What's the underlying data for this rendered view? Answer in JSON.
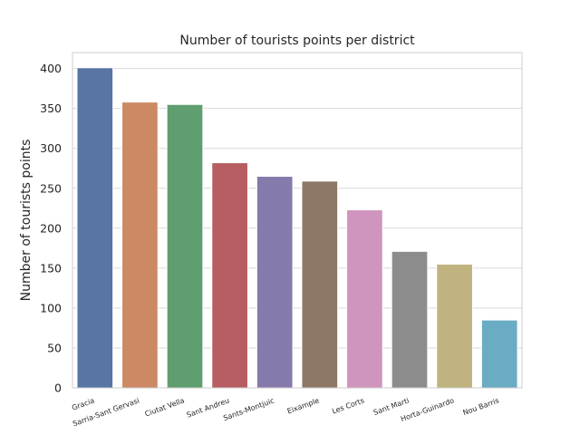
{
  "chart_data": {
    "type": "bar",
    "title": "Number of tourists points per district",
    "xlabel": "",
    "ylabel": "Number of tourists points",
    "categories": [
      "Gracia",
      "Sarria-Sant Gervasi",
      "Ciutat Vella",
      "Sant Andreu",
      "Sants-Montjuic",
      "Eixample",
      "Les Corts",
      "Sant Marti",
      "Horta-Guinardo",
      "Nou Barris"
    ],
    "values": [
      401,
      358,
      355,
      282,
      265,
      259,
      223,
      171,
      155,
      85
    ],
    "colors": [
      "#5975a4",
      "#cc8963",
      "#5f9e6e",
      "#b55d60",
      "#857aab",
      "#8d7866",
      "#d095bf",
      "#8c8c8c",
      "#c1b37f",
      "#6aacc4"
    ],
    "ylim": [
      0,
      420
    ],
    "yticks": [
      0,
      50,
      100,
      150,
      200,
      250,
      300,
      350,
      400
    ],
    "grid": true,
    "x_tick_rotation": "rotated"
  }
}
